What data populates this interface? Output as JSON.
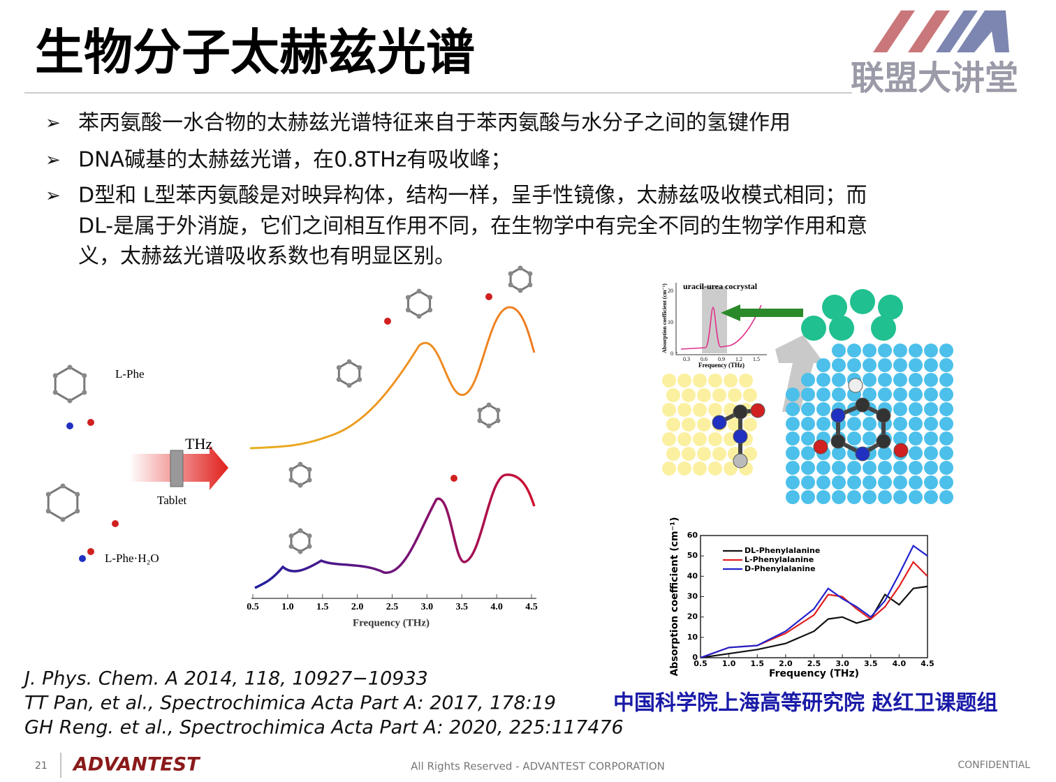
{
  "header": {
    "title": "生物分子太赫兹光谱",
    "logo_text": "联盟大讲堂"
  },
  "bullets": [
    {
      "lines": [
        "苯丙氨酸一水合物的太赫兹光谱特征来自于苯丙氨酸与水分子之间的氢键作用"
      ]
    },
    {
      "lines": [
        "DNA碱基的太赫兹光谱，在0.8THz有吸收峰；"
      ]
    },
    {
      "lines": [
        "D型和 L型苯丙氨酸是对映异构体，结构一样，呈手性镜像，太赫兹吸收模式相同；而",
        "DL-是属于外消旋，它们之间相互作用不同，在生物学中有完全不同的生物学作用和意",
        "义，太赫兹光谱吸收系数也有明显区别。"
      ]
    }
  ],
  "figure_left": {
    "labels": {
      "l_phe": "L-Phe",
      "thz": "THz",
      "tablet": "Tablet",
      "l_phe_h2o": "L-Phe·H₂O"
    },
    "xticks": [
      "0.5",
      "1.0",
      "1.5",
      "2.0",
      "2.5",
      "3.0",
      "3.5",
      "4.0",
      "4.5"
    ],
    "xlabel": "Frequency (THz)"
  },
  "figure_right_top": {
    "title": "uracil-urea cocrystal",
    "ylabel": "Absorption coefficient (cm⁻¹)",
    "yticks": [
      "0",
      "10",
      "20"
    ],
    "xticks": [
      "0.3",
      "0.6",
      "0.9",
      "1.2",
      "1.5"
    ],
    "xlabel": "Frequency (THz)"
  },
  "chart_data": {
    "type": "line",
    "ylabel": "Absorption coefficient (cm⁻¹)",
    "xlabel": "Frequency (THz)",
    "x": [
      0.5,
      1.0,
      1.5,
      2.0,
      2.5,
      2.75,
      3.0,
      3.25,
      3.5,
      3.75,
      4.0,
      4.25,
      4.5
    ],
    "series": [
      {
        "name": "DL-Phenylalanine",
        "color": "#111111",
        "values": [
          0,
          2,
          4,
          7,
          13,
          19,
          20,
          17,
          19,
          31,
          26,
          34,
          35
        ]
      },
      {
        "name": "L-Phenylalanine",
        "color": "#e02020",
        "values": [
          0,
          5,
          6,
          12,
          21,
          31,
          30,
          24,
          19,
          25,
          35,
          47,
          40
        ]
      },
      {
        "name": "D-Phenylalanine",
        "color": "#2222cc",
        "values": [
          0,
          5,
          6,
          13,
          24,
          34,
          29,
          25,
          20,
          28,
          41,
          55,
          50
        ]
      }
    ],
    "xlim": [
      0.5,
      4.5
    ],
    "ylim": [
      0,
      60
    ],
    "xticks": [
      0.5,
      {
        "value": 1,
        "label": "1.0"
      },
      1.5,
      {
        "value": 2,
        "label": "2.0"
      },
      2.5,
      {
        "value": 3,
        "label": "3.0"
      },
      3.5,
      {
        "value": 4,
        "label": "4.0"
      },
      4.5
    ],
    "yticks": [
      0,
      10,
      20,
      30,
      40,
      50,
      60
    ],
    "legend": "upper-left"
  },
  "references": [
    "J. Phys. Chem. A 2014, 118, 10927−10933",
    "TT Pan, et al.,  Spectrochimica Acta Part A: 2017, 178:19",
    "GH Reng. et al., Spectrochimica Acta Part A: 2020, 225:117476"
  ],
  "affiliation": "中国科学院上海高等研究院 赵红卫课题组",
  "footer": {
    "page": "21",
    "brand": "ADVANTEST",
    "rights": "All Rights Reserved - ADVANTEST CORPORATION",
    "confidential": "CONFIDENTIAL"
  }
}
